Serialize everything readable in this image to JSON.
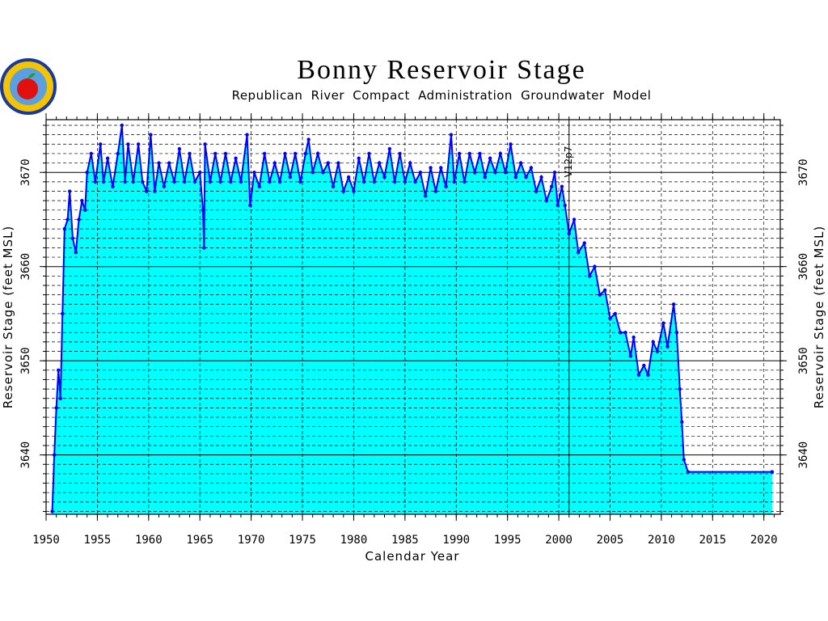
{
  "chart_data": {
    "type": "area",
    "title": "Bonny Reservoir Stage",
    "subtitle": "Republican River Compact Administration Groundwater Model",
    "xlabel": "Calendar Year",
    "ylabel": "Reservoir Stage (feet MSL)",
    "xlim": [
      1950,
      2021.6
    ],
    "xticks": [
      1950,
      1955,
      1960,
      1965,
      1970,
      1975,
      1980,
      1985,
      1990,
      1995,
      2000,
      2005,
      2010,
      2015,
      2020
    ],
    "ylim": [
      3633.7,
      3675.6
    ],
    "yticks": [
      3640,
      3650,
      3660,
      3670
    ],
    "grid": true,
    "color": "#0000ff",
    "area_color": "#00ffff",
    "annotations": [
      {
        "x": 2001,
        "text": "V12p7"
      }
    ],
    "x": [
      1950.6,
      1950.8,
      1951.0,
      1951.2,
      1951.4,
      1951.6,
      1951.8,
      1952.1,
      1952.3,
      1952.6,
      1952.9,
      1953.2,
      1953.5,
      1953.8,
      1954.0,
      1954.4,
      1954.8,
      1955.3,
      1955.6,
      1956.0,
      1956.5,
      1957.0,
      1957.4,
      1957.7,
      1958.0,
      1958.5,
      1959.0,
      1959.4,
      1959.8,
      1960.2,
      1960.6,
      1961.0,
      1961.5,
      1962.0,
      1962.5,
      1963.0,
      1963.5,
      1964.0,
      1964.5,
      1965.0,
      1965.3,
      1965.4,
      1965.5,
      1966.0,
      1966.5,
      1967.0,
      1967.5,
      1968.0,
      1968.5,
      1969.0,
      1969.6,
      1969.9,
      1970.3,
      1970.8,
      1971.3,
      1971.8,
      1972.3,
      1972.8,
      1973.3,
      1973.8,
      1974.3,
      1974.8,
      1975.3,
      1975.6,
      1976.0,
      1976.5,
      1977.0,
      1977.5,
      1978.0,
      1978.5,
      1979.0,
      1979.5,
      1980.0,
      1980.5,
      1981.0,
      1981.5,
      1982.0,
      1982.5,
      1983.0,
      1983.5,
      1984.0,
      1984.5,
      1985.0,
      1985.5,
      1986.0,
      1986.5,
      1987.0,
      1987.5,
      1988.0,
      1988.5,
      1989.0,
      1989.5,
      1989.8,
      1990.3,
      1990.8,
      1991.3,
      1991.8,
      1992.3,
      1992.8,
      1993.3,
      1993.8,
      1994.3,
      1994.8,
      1995.3,
      1995.8,
      1996.3,
      1996.8,
      1997.3,
      1997.8,
      1998.3,
      1998.8,
      1999.3,
      1999.6,
      1999.9,
      2000.3,
      2000.6,
      2001.0,
      2001.5,
      2001.9,
      2002.5,
      2003.0,
      2003.5,
      2004.0,
      2004.5,
      2005.0,
      2005.5,
      2006.0,
      2006.5,
      2007.0,
      2007.3,
      2007.8,
      2008.3,
      2008.7,
      2009.2,
      2009.6,
      2010.2,
      2010.6,
      2011.2,
      2011.5,
      2011.8,
      2012.0,
      2012.2,
      2012.6,
      2020.8
    ],
    "values": [
      3634,
      3640,
      3645,
      3649,
      3646,
      3655,
      3664,
      3665,
      3668,
      3663,
      3661.5,
      3665,
      3667,
      3666,
      3670,
      3672,
      3669,
      3673,
      3669,
      3671.5,
      3668.5,
      3672,
      3675,
      3669,
      3673,
      3669,
      3673,
      3669,
      3668,
      3674,
      3668,
      3671,
      3668.5,
      3671,
      3669,
      3672.5,
      3669,
      3672,
      3669,
      3670,
      3666,
      3662,
      3673,
      3669,
      3672,
      3669,
      3672,
      3669,
      3671.5,
      3669,
      3674,
      3666.5,
      3670,
      3668.5,
      3672,
      3669,
      3671,
      3669,
      3672,
      3669.5,
      3672,
      3669,
      3672,
      3673.5,
      3670,
      3672,
      3670,
      3671,
      3668.5,
      3671,
      3668,
      3669.5,
      3668,
      3671.5,
      3669,
      3672,
      3669,
      3671,
      3669.5,
      3672.5,
      3669,
      3672,
      3669,
      3671,
      3669,
      3670,
      3667.5,
      3670.5,
      3668,
      3670.5,
      3668.5,
      3674,
      3669,
      3672,
      3669,
      3672,
      3670,
      3672,
      3669.5,
      3671.5,
      3670,
      3672,
      3670,
      3673,
      3669.5,
      3671,
      3669.5,
      3670.5,
      3668,
      3669.5,
      3667,
      3668.5,
      3670,
      3666.5,
      3668.5,
      3666.5,
      3663.5,
      3665,
      3661.5,
      3662.5,
      3659,
      3660,
      3657,
      3657.5,
      3654.5,
      3655,
      3653,
      3653,
      3650.5,
      3652.5,
      3648.5,
      3649.5,
      3648.5,
      3652,
      3651,
      3654,
      3651.5,
      3656,
      3653,
      3647,
      3643.5,
      3639.5,
      3638.2,
      3638.2
    ]
  }
}
